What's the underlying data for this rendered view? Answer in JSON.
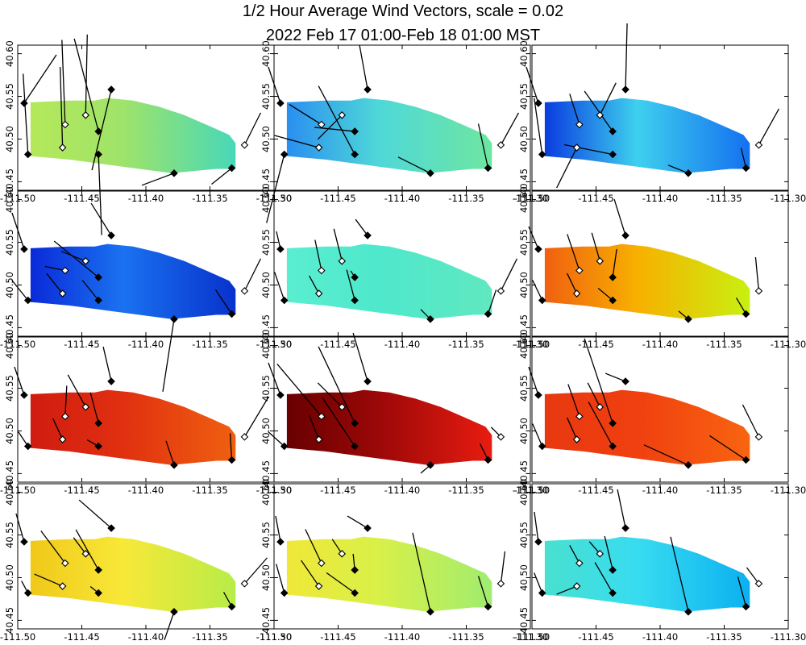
{
  "title_line1": "1/2 Hour Average Wind Vectors, scale =  0.02",
  "title_line2": "2022 Feb 17 01:00-Feb 18 01:00 MST",
  "chart_data": {
    "type": "vector-field-map",
    "layout": "4 rows x 3 columns",
    "x_axis": {
      "range": [
        -111.5,
        -111.3
      ],
      "ticks": [
        "-111.50",
        "-111.45",
        "-111.40",
        "-111.35",
        "-111.30"
      ]
    },
    "y_axis": {
      "range": [
        40.44,
        40.61
      ],
      "ticks": [
        "40.45",
        "40.50",
        "40.55",
        "40.60"
      ]
    },
    "region_polygon": [
      [
        -111.49,
        40.543
      ],
      [
        -111.46,
        40.545
      ],
      [
        -111.44,
        40.545
      ],
      [
        -111.43,
        40.548
      ],
      [
        -111.41,
        40.545
      ],
      [
        -111.39,
        40.538
      ],
      [
        -111.37,
        40.528
      ],
      [
        -111.35,
        40.515
      ],
      [
        -111.335,
        40.505
      ],
      [
        -111.33,
        40.495
      ],
      [
        -111.33,
        40.465
      ],
      [
        -111.345,
        40.465
      ],
      [
        -111.38,
        40.46
      ],
      [
        -111.43,
        40.47
      ],
      [
        -111.46,
        40.476
      ],
      [
        -111.49,
        40.48
      ]
    ],
    "stations": [
      {
        "lon": -111.495,
        "lat": 40.542,
        "filled": true
      },
      {
        "lon": -111.492,
        "lat": 40.482,
        "filled": true
      },
      {
        "lon": -111.463,
        "lat": 40.517,
        "filled": false
      },
      {
        "lon": -111.465,
        "lat": 40.49,
        "filled": false
      },
      {
        "lon": -111.447,
        "lat": 40.528,
        "filled": false
      },
      {
        "lon": -111.437,
        "lat": 40.509,
        "filled": true
      },
      {
        "lon": -111.437,
        "lat": 40.482,
        "filled": true
      },
      {
        "lon": -111.427,
        "lat": 40.558,
        "filled": true
      },
      {
        "lon": -111.378,
        "lat": 40.46,
        "filled": true
      },
      {
        "lon": -111.333,
        "lat": 40.466,
        "filled": true
      },
      {
        "lon": -111.323,
        "lat": 40.493,
        "filled": false
      }
    ],
    "panels": [
      {
        "field": {
          "left": "#b4e85a",
          "mid": "#9fe36a",
          "right": "#48d8b8"
        },
        "vectors": [
          [
            40,
            -60
          ],
          [
            -6,
            -100
          ],
          [
            -4,
            -105
          ],
          [
            -3,
            -100
          ],
          [
            2,
            -100
          ],
          [
            -30,
            -115
          ],
          [
            4,
            100
          ],
          [
            -24,
            100
          ],
          [
            -40,
            15
          ],
          [
            -25,
            20
          ],
          [
            20,
            -40
          ]
        ]
      },
      {
        "field": {
          "left": "#2a8ff0",
          "mid": "#4fd8d8",
          "right": "#6ee6a0"
        },
        "vectors": [
          [
            -15,
            -45
          ],
          [
            -22,
            85
          ],
          [
            -40,
            -25
          ],
          [
            -55,
            -15
          ],
          [
            -30,
            30
          ],
          [
            -50,
            -5
          ],
          [
            -45,
            -85
          ],
          [
            -10,
            -55
          ],
          [
            -40,
            -20
          ],
          [
            -12,
            -55
          ],
          [
            22,
            -40
          ]
        ]
      },
      {
        "field": {
          "left": "#0a3ce0",
          "mid": "#3ed0ee",
          "right": "#1470f0"
        },
        "vectors": [
          [
            -15,
            -45
          ],
          [
            -10,
            -70
          ],
          [
            -12,
            -38
          ],
          [
            -25,
            50
          ],
          [
            20,
            -40
          ],
          [
            -35,
            -50
          ],
          [
            -60,
            -12
          ],
          [
            2,
            -82
          ],
          [
            -25,
            -10
          ],
          [
            -6,
            -25
          ],
          [
            25,
            -45
          ]
        ]
      },
      {
        "field": {
          "left": "#0a2ad8",
          "mid": "#1a72f0",
          "right": "#0832cc"
        },
        "vectors": [
          [
            -15,
            -45
          ],
          [
            -20,
            -25
          ],
          [
            -25,
            -5
          ],
          [
            -20,
            -25
          ],
          [
            -30,
            -12
          ],
          [
            -55,
            -45
          ],
          [
            -20,
            -25
          ],
          [
            -25,
            -40
          ],
          [
            -14,
            90
          ],
          [
            -20,
            -30
          ],
          [
            20,
            -40
          ]
        ]
      },
      {
        "field": {
          "left": "#5aeed0",
          "mid": "#4ee8cc",
          "right": "#60e8c0"
        },
        "vectors": [
          [
            -5,
            -22
          ],
          [
            -12,
            -35
          ],
          [
            -8,
            -38
          ],
          [
            -12,
            -22
          ],
          [
            -10,
            -40
          ],
          [
            -5,
            -8
          ],
          [
            -10,
            -38
          ],
          [
            -15,
            -20
          ],
          [
            -12,
            -12
          ],
          [
            10,
            -30
          ],
          [
            20,
            -40
          ]
        ]
      },
      {
        "field": {
          "left": "#f06010",
          "mid": "#f8b000",
          "right": "#c8f010"
        },
        "vectors": [
          [
            -12,
            -28
          ],
          [
            -12,
            -25
          ],
          [
            -15,
            -45
          ],
          [
            -12,
            -25
          ],
          [
            -10,
            -35
          ],
          [
            5,
            -35
          ],
          [
            -18,
            -15
          ],
          [
            -14,
            -45
          ],
          [
            -12,
            -10
          ],
          [
            -12,
            -20
          ],
          [
            -4,
            -42
          ]
        ]
      },
      {
        "field": {
          "left": "#d01c10",
          "mid": "#e03010",
          "right": "#f06010"
        },
        "vectors": [
          [
            -12,
            -35
          ],
          [
            -12,
            -18
          ],
          [
            2,
            -38
          ],
          [
            -12,
            -26
          ],
          [
            -22,
            -40
          ],
          [
            -10,
            -38
          ],
          [
            -14,
            -8
          ],
          [
            -10,
            -43
          ],
          [
            -10,
            -30
          ],
          [
            -2,
            -33
          ],
          [
            30,
            -50
          ]
        ]
      },
      {
        "field": {
          "left": "#680000",
          "mid": "#9c0808",
          "right": "#e81c10"
        },
        "vectors": [
          [
            -15,
            -40
          ],
          [
            -20,
            -18
          ],
          [
            -55,
            -65
          ],
          [
            -12,
            -30
          ],
          [
            -30,
            -30
          ],
          [
            -45,
            -95
          ],
          [
            -40,
            -60
          ],
          [
            -18,
            -60
          ],
          [
            -12,
            10
          ],
          [
            -10,
            -20
          ],
          [
            -12,
            -12
          ]
        ]
      },
      {
        "field": {
          "left": "#e83810",
          "mid": "#f04010",
          "right": "#f86410"
        },
        "vectors": [
          [
            -12,
            -35
          ],
          [
            -12,
            -28
          ],
          [
            -14,
            -40
          ],
          [
            -12,
            -27
          ],
          [
            -15,
            -30
          ],
          [
            -35,
            -105
          ],
          [
            -30,
            -55
          ],
          [
            -25,
            -10
          ],
          [
            -55,
            -25
          ],
          [
            -45,
            -30
          ],
          [
            -20,
            -40
          ]
        ]
      },
      {
        "field": {
          "left": "#f0c818",
          "mid": "#f8e838",
          "right": "#b8ec48"
        },
        "vectors": [
          [
            -10,
            -35
          ],
          [
            -8,
            -15
          ],
          [
            -30,
            -40
          ],
          [
            -35,
            -15
          ],
          [
            -15,
            -20
          ],
          [
            -28,
            -50
          ],
          [
            -10,
            -8
          ],
          [
            -40,
            -35
          ],
          [
            -12,
            35
          ],
          [
            -10,
            -18
          ],
          [
            28,
            -32
          ]
        ]
      },
      {
        "field": {
          "left": "#f0e838",
          "mid": "#d8f048",
          "right": "#a0ec70"
        },
        "vectors": [
          [
            -6,
            -32
          ],
          [
            -10,
            -36
          ],
          [
            -20,
            -42
          ],
          [
            -22,
            -32
          ],
          [
            -12,
            -18
          ],
          [
            -2,
            -20
          ],
          [
            -35,
            -25
          ],
          [
            -25,
            -15
          ],
          [
            -22,
            -98
          ],
          [
            -12,
            -38
          ],
          [
            5,
            -40
          ]
        ]
      },
      {
        "field": {
          "left": "#48e0d0",
          "mid": "#38dcf0",
          "right": "#0cb0f0"
        },
        "vectors": [
          [
            -5,
            -37
          ],
          [
            -10,
            -25
          ],
          [
            -12,
            -22
          ],
          [
            -25,
            10
          ],
          [
            -13,
            -15
          ],
          [
            -10,
            -42
          ],
          [
            -22,
            -38
          ],
          [
            -10,
            -48
          ],
          [
            -22,
            -93
          ],
          [
            -10,
            -37
          ],
          [
            -15,
            -20
          ]
        ]
      }
    ]
  }
}
